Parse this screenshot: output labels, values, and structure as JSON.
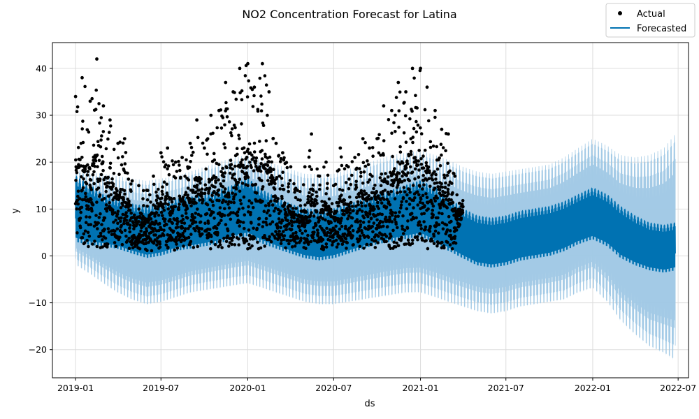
{
  "chart_data": {
    "type": "line",
    "title": "NO2 Concentration Forecast for Latina",
    "xlabel": "ds",
    "ylabel": "y",
    "x_ticks": [
      "2019-01",
      "2019-07",
      "2020-01",
      "2020-07",
      "2021-01",
      "2021-07",
      "2022-01",
      "2022-07"
    ],
    "y_ticks": [
      -20,
      -10,
      0,
      10,
      20,
      30,
      40
    ],
    "xlim": [
      "2018-11-13",
      "2022-07-23"
    ],
    "ylim": [
      -26,
      45.5
    ],
    "grid": true,
    "legend_position": "top-right",
    "legend": [
      {
        "label": "Actual",
        "marker": "dot",
        "color": "#000000"
      },
      {
        "label": "Forecasted",
        "marker": "line",
        "color": "#0072B2"
      }
    ],
    "colors": {
      "actual": "#000000",
      "forecast": "#0072B2",
      "interval": "#9ec8e4",
      "grid": "#dddddd"
    },
    "series": [
      {
        "name": "Actual",
        "kind": "scatter",
        "gaps": [
          [
            "2019-09-28",
            "2019-10-02"
          ],
          [
            "2020-08-12",
            "2020-08-16"
          ]
        ],
        "x": [
          "2019-01-01",
          "2019-01-15",
          "2019-02-01",
          "2019-02-15",
          "2019-03-01",
          "2019-03-15",
          "2019-04-01",
          "2019-04-15",
          "2019-05-01",
          "2019-05-15",
          "2019-06-01",
          "2019-06-15",
          "2019-07-01",
          "2019-07-15",
          "2019-08-01",
          "2019-08-15",
          "2019-09-01",
          "2019-09-15",
          "2019-10-01",
          "2019-10-15",
          "2019-11-01",
          "2019-11-15",
          "2019-12-01",
          "2019-12-15",
          "2020-01-01",
          "2020-01-15",
          "2020-02-01",
          "2020-02-15",
          "2020-03-01",
          "2020-03-15",
          "2020-04-01",
          "2020-04-15",
          "2020-05-01",
          "2020-05-15",
          "2020-06-01",
          "2020-06-15",
          "2020-07-01",
          "2020-07-15",
          "2020-08-01",
          "2020-08-15",
          "2020-09-01",
          "2020-09-15",
          "2020-10-01",
          "2020-10-15",
          "2020-11-01",
          "2020-11-15",
          "2020-12-01",
          "2020-12-15",
          "2021-01-01",
          "2021-01-15",
          "2021-02-01",
          "2021-02-15",
          "2021-03-01",
          "2021-03-15",
          "2021-04-01"
        ],
        "low": [
          4,
          2,
          1.5,
          1,
          1.5,
          2,
          1.5,
          1.5,
          1,
          1.5,
          1,
          1,
          1.5,
          1.5,
          1,
          1.5,
          1.5,
          2,
          2,
          1.5,
          1.5,
          1.5,
          2,
          2,
          1.5,
          1.5,
          1.5,
          2,
          1.5,
          1.5,
          1,
          1.5,
          1.5,
          1,
          1,
          1.5,
          1.5,
          1.5,
          1.5,
          1.5,
          1.5,
          1.5,
          1.5,
          2,
          1.5,
          1.5,
          2,
          2,
          2,
          1.5,
          2,
          1.5,
          1.5,
          1.5,
          9
        ],
        "high": [
          34,
          38,
          33,
          42,
          32,
          29,
          24,
          25,
          16,
          15,
          14,
          17,
          22,
          23,
          20,
          21,
          24,
          29,
          23,
          30,
          31,
          37,
          35,
          40,
          41,
          36,
          41,
          35,
          24,
          22,
          19,
          14,
          19,
          26,
          17,
          20,
          15,
          23,
          19,
          21,
          25,
          23,
          25,
          32,
          31,
          37,
          35,
          40,
          40,
          36,
          31,
          27,
          26,
          17,
          10.5
        ]
      },
      {
        "name": "Forecasted",
        "kind": "line",
        "x": [
          "2019-01-01",
          "2019-02-01",
          "2019-03-01",
          "2019-04-01",
          "2019-05-01",
          "2019-06-01",
          "2019-07-01",
          "2019-08-01",
          "2019-09-01",
          "2019-10-01",
          "2019-11-01",
          "2019-12-01",
          "2020-01-01",
          "2020-02-01",
          "2020-03-01",
          "2020-04-01",
          "2020-05-01",
          "2020-06-01",
          "2020-07-01",
          "2020-08-01",
          "2020-09-01",
          "2020-10-01",
          "2020-11-01",
          "2020-12-01",
          "2021-01-01",
          "2021-02-01",
          "2021-03-01",
          "2021-04-01",
          "2021-05-01",
          "2021-06-01",
          "2021-07-01",
          "2021-08-01",
          "2021-09-01",
          "2021-10-01",
          "2021-11-01",
          "2021-12-01",
          "2022-01-01",
          "2022-02-01",
          "2022-03-01",
          "2022-04-01",
          "2022-05-01",
          "2022-06-01",
          "2022-06-25"
        ],
        "high": [
          17,
          15,
          13,
          12,
          11,
          10.5,
          11,
          12,
          12.5,
          13,
          14,
          15,
          16.5,
          14,
          12.5,
          11,
          10,
          9.8,
          10,
          11,
          12,
          13,
          14,
          15,
          16,
          14.5,
          12.5,
          10,
          8.5,
          8,
          8.5,
          9.5,
          10,
          10.5,
          11.5,
          13,
          14.5,
          13,
          10.5,
          8.5,
          7,
          6.5,
          7
        ],
        "low": [
          1,
          0.5,
          0.5,
          0,
          -1,
          -2,
          -1.5,
          -0.5,
          0,
          0.5,
          1,
          2,
          2.5,
          1,
          0,
          -1,
          -2,
          -2.5,
          -2,
          -1,
          0,
          1,
          1.5,
          2,
          2.5,
          1,
          -0.5,
          -2,
          -3.5,
          -4,
          -3.5,
          -2.5,
          -2,
          -1.5,
          -0.5,
          1,
          2,
          0.5,
          -2,
          -3.5,
          -4.5,
          -5,
          -4.5
        ],
        "interval_high": [
          18.5,
          18,
          17.5,
          17,
          16.5,
          16,
          16.5,
          17,
          18,
          19,
          20,
          21,
          21.5,
          20.5,
          19.5,
          18.5,
          17.5,
          17.5,
          17.5,
          18.5,
          19.5,
          20.5,
          21.5,
          22,
          22.5,
          21.5,
          20.5,
          19,
          18,
          17.5,
          18,
          18.5,
          19,
          19.5,
          21,
          23,
          25,
          23.5,
          21.5,
          21,
          21.5,
          23,
          26
        ],
        "interval_low": [
          -2,
          -4,
          -6,
          -8,
          -9.5,
          -10.5,
          -10,
          -9,
          -8,
          -7.5,
          -7,
          -6.5,
          -6,
          -7,
          -8,
          -9,
          -10,
          -10.5,
          -10.5,
          -10,
          -9.5,
          -9,
          -8.5,
          -8,
          -8,
          -9,
          -10,
          -11,
          -12,
          -12.5,
          -12,
          -11,
          -10.5,
          -10,
          -9.5,
          -8,
          -7,
          -10,
          -14,
          -17,
          -19.5,
          -21,
          -22.5
        ]
      }
    ]
  }
}
